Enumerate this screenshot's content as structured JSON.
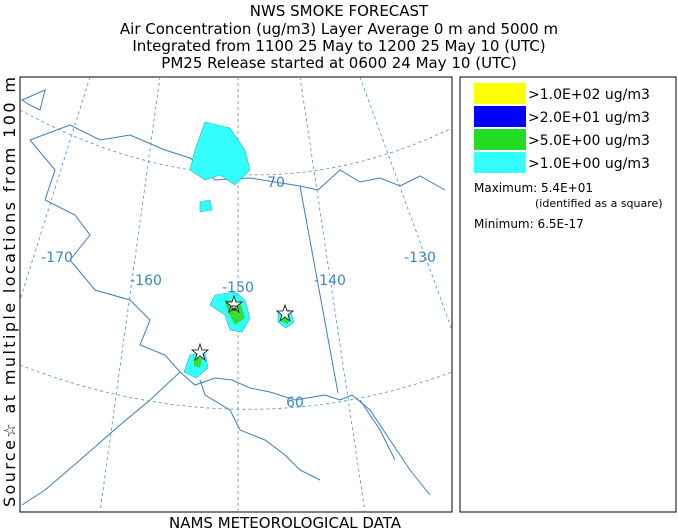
{
  "header": {
    "title": "NWS SMOKE FORECAST",
    "lines": [
      "Air Concentration (ug/m3) Layer Average    0 m and  5000 m",
      "Integrated from 1100 25 May to 1200 25 May 10 (UTC)",
      "PM25 Release started at 0600 24 May 10 (UTC)"
    ]
  },
  "map": {
    "grid_labels": [
      "-170",
      "-160",
      "-150",
      "-140",
      "-130",
      "70",
      "60"
    ],
    "side_label": "Source☆  at multiple locations  from  100 m",
    "footer": "NAMS METEOROLOGICAL DATA"
  },
  "legend": {
    "entries": [
      {
        "label": ">1.0E+02 ug/m3",
        "color": "#ffff00"
      },
      {
        "label": ">2.0E+01 ug/m3",
        "color": "#0000ff"
      },
      {
        "label": ">5.0E+00 ug/m3",
        "color": "#22dd22"
      },
      {
        "label": ">1.0E+00 ug/m3",
        "color": "#33ffff"
      }
    ],
    "maximum": "Maximum: 5.4E+01",
    "maximum_note": "(identified as a square)",
    "minimum": "Minimum: 6.5E-17"
  }
}
